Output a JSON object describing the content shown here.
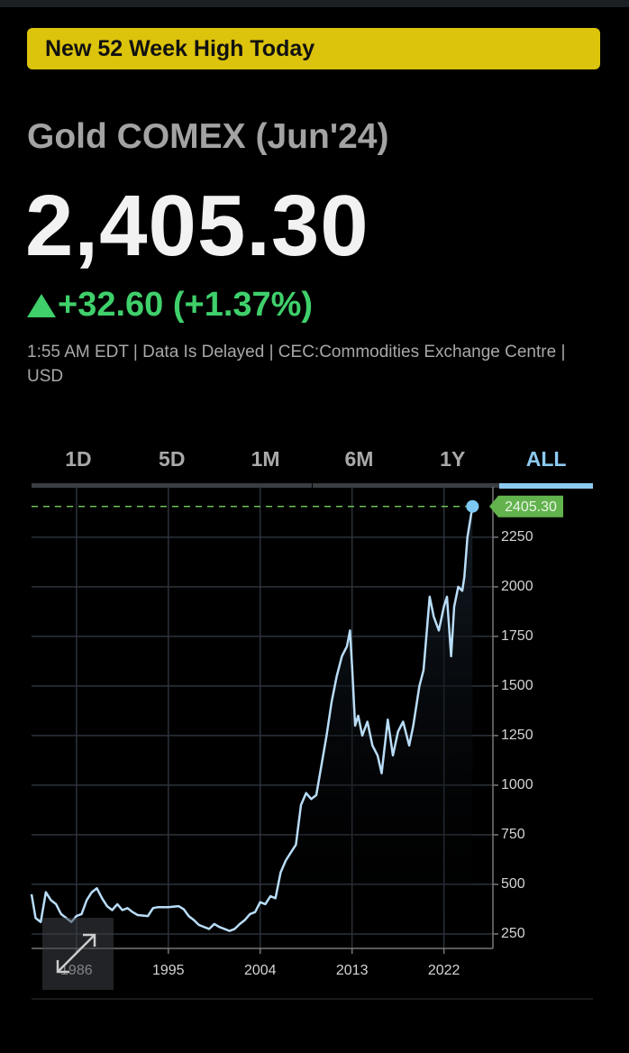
{
  "header": {
    "banner": "New 52 Week High Today",
    "instrument": "Gold COMEX (Jun'24)",
    "price": "2,405.30",
    "change": "+32.60 (+1.37%)",
    "info": "1:55 AM EDT | Data Is Delayed | CEC:Commodities Exchange Centre | USD"
  },
  "tabs": {
    "items": [
      "1D",
      "5D",
      "1M",
      "6M",
      "1Y",
      "ALL"
    ],
    "selected_index": 5
  },
  "chart_data": {
    "type": "line",
    "color": "#b9ddf8",
    "grid": true,
    "x": [
      1981.6,
      1982,
      1982.5,
      1983,
      1983.5,
      1984,
      1984.5,
      1985,
      1985.5,
      1986,
      1986.5,
      1987,
      1987.5,
      1988,
      1988.5,
      1989,
      1989.5,
      1990,
      1990.5,
      1991,
      1991.5,
      1992,
      1993,
      1993.5,
      1994,
      1995,
      1996,
      1996.5,
      1997,
      1997.5,
      1998,
      1999,
      1999.5,
      2000,
      2001,
      2001.5,
      2002,
      2002.5,
      2003,
      2003.5,
      2004,
      2004.5,
      2005,
      2005.5,
      2006,
      2006.5,
      2007,
      2007.5,
      2008,
      2008.5,
      2009,
      2009.5,
      2010,
      2010.5,
      2011,
      2011.5,
      2012,
      2012.5,
      2012.8,
      2013,
      2013.3,
      2013.6,
      2014,
      2014.5,
      2015,
      2015.5,
      2015.9,
      2016.5,
      2017,
      2017.5,
      2018,
      2018.6,
      2019,
      2019.6,
      2020,
      2020.6,
      2021,
      2021.5,
      2022,
      2022.3,
      2022.7,
      2023,
      2023.4,
      2023.8,
      2024,
      2024.3,
      2024.8
    ],
    "values": [
      450,
      330,
      310,
      460,
      420,
      400,
      350,
      330,
      310,
      340,
      350,
      420,
      460,
      480,
      430,
      390,
      370,
      400,
      370,
      380,
      360,
      345,
      340,
      380,
      385,
      385,
      390,
      375,
      340,
      320,
      295,
      275,
      300,
      285,
      265,
      275,
      300,
      320,
      350,
      360,
      410,
      400,
      440,
      430,
      560,
      620,
      660,
      700,
      900,
      960,
      930,
      950,
      1100,
      1250,
      1420,
      1550,
      1650,
      1700,
      1780,
      1600,
      1300,
      1350,
      1250,
      1320,
      1200,
      1150,
      1060,
      1330,
      1150,
      1270,
      1320,
      1200,
      1300,
      1500,
      1580,
      1950,
      1850,
      1780,
      1900,
      1950,
      1650,
      1900,
      2000,
      1980,
      2050,
      2250,
      2405.3
    ],
    "xlim": [
      1981.6,
      2026.8
    ],
    "ylim": [
      177,
      2504
    ],
    "xticks": [
      1986,
      1995,
      2004,
      2013,
      2022
    ],
    "yticks": [
      250,
      500,
      750,
      1000,
      1250,
      1500,
      1750,
      2000,
      2250
    ],
    "annotations": [
      {
        "x": 2024.8,
        "value": 2405.3,
        "label": "2405.30"
      }
    ]
  }
}
